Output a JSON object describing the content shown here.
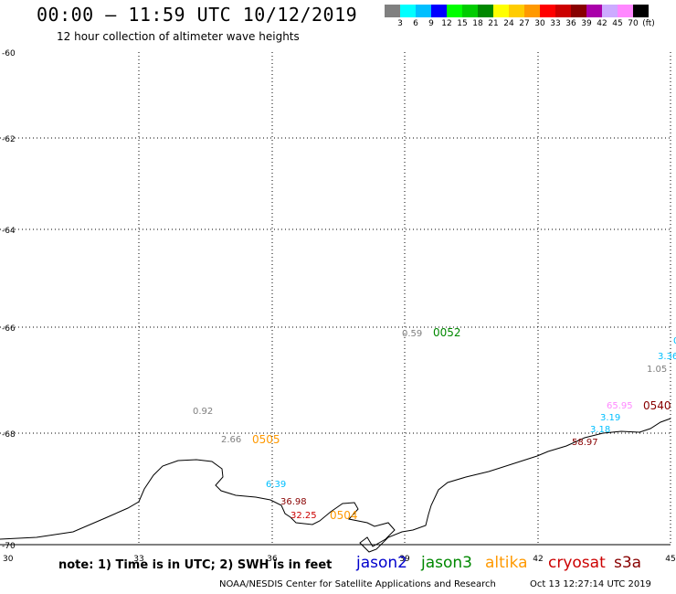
{
  "header": {
    "title": "00:00 – 11:59 UTC 10/12/2019",
    "subtitle": "12 hour collection of altimeter wave heights"
  },
  "color_scale": {
    "colors": [
      "#808080",
      "#00ffff",
      "#00bfff",
      "#0000ff",
      "#00ff00",
      "#00cc00",
      "#008800",
      "#ffff00",
      "#ffcc00",
      "#ff9900",
      "#ff0000",
      "#cc0000",
      "#880000",
      "#aa00aa",
      "#ccaaff",
      "#ff88ff",
      "#000000"
    ],
    "labels": [
      "3",
      "6",
      "9",
      "12",
      "15",
      "18",
      "21",
      "24",
      "27",
      "30",
      "33",
      "36",
      "39",
      "42",
      "45",
      "70",
      "(ft)"
    ]
  },
  "axes": {
    "lat_labels": [
      "-60",
      "-62",
      "-64",
      "-66",
      "-68",
      "-70"
    ],
    "lon_labels": [
      "30",
      "33",
      "36",
      "39",
      "42",
      "45"
    ]
  },
  "observations": [
    {
      "label": "0.59",
      "color": "#808080"
    },
    {
      "label": "0052",
      "color": "#008800"
    },
    {
      "label": "0.92",
      "color": "#808080"
    },
    {
      "label": "2.66",
      "color": "#808080"
    },
    {
      "label": "0505",
      "color": "#ff9900"
    },
    {
      "label": "6.39",
      "color": "#00bfff"
    },
    {
      "label": "36.98",
      "color": "#880000"
    },
    {
      "label": "32.25",
      "color": "#cc0000"
    },
    {
      "label": "0504",
      "color": "#ff9900"
    },
    {
      "label": "1.05",
      "color": "#808080"
    },
    {
      "label": "3.36",
      "color": "#00bfff"
    },
    {
      "label": "0",
      "color": "#00bfff"
    },
    {
      "label": "65.95",
      "color": "#ff88ff"
    },
    {
      "label": "0540",
      "color": "#880000"
    },
    {
      "label": "3.19",
      "color": "#00bfff"
    },
    {
      "label": "3.18",
      "color": "#00bfff"
    },
    {
      "label": "58.97",
      "color": "#880000"
    }
  ],
  "footer": {
    "note": "note: 1) Time is in UTC; 2) SWH is in feet",
    "satellites": [
      {
        "name": "jason2",
        "color": "#0000cc"
      },
      {
        "name": "jason3",
        "color": "#008800"
      },
      {
        "name": "altika",
        "color": "#ff9900"
      },
      {
        "name": "cryosat",
        "color": "#cc0000"
      },
      {
        "name": "s3a",
        "color": "#880000"
      }
    ],
    "credit": "NOAA/NESDIS Center for Satellite Applications and Research",
    "timestamp": "Oct 13 12:27:14 UTC 2019"
  }
}
